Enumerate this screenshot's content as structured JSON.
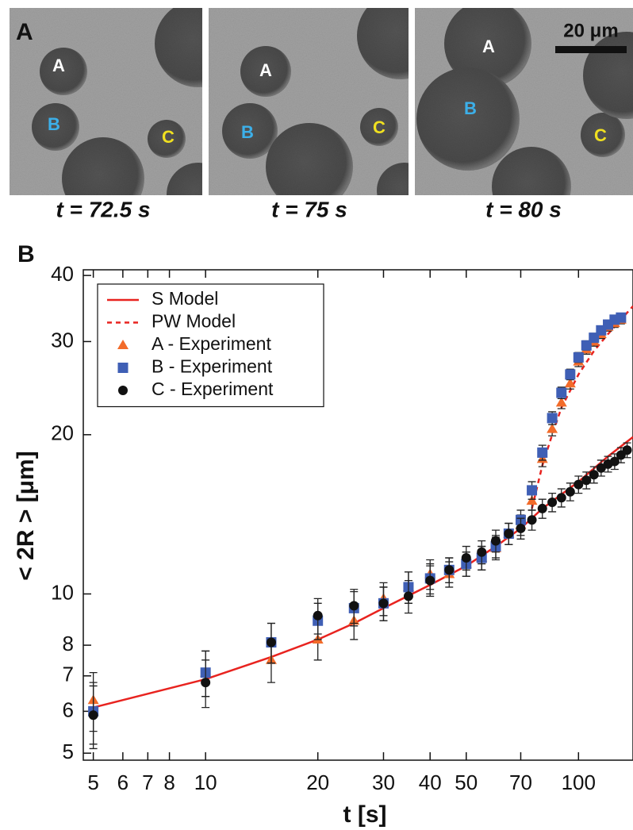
{
  "panel_a": {
    "label": "A",
    "scale_bar": "20 μm",
    "frames": [
      {
        "caption": "t = 72.5 s",
        "markers": [
          "A",
          "B",
          "C"
        ]
      },
      {
        "caption": "t = 75 s",
        "markers": [
          "A",
          "B",
          "C"
        ]
      },
      {
        "caption": "t = 80 s",
        "markers": [
          "A",
          "B",
          "C"
        ]
      }
    ]
  },
  "chart_data": {
    "type": "scatter",
    "panel_label": "B",
    "xlabel": "t [s]",
    "ylabel": "< 2R > [μm]",
    "log_x": true,
    "log_y": true,
    "xlim": [
      4.7,
      140
    ],
    "ylim": [
      4.85,
      41
    ],
    "xticks": [
      5,
      6,
      7,
      8,
      10,
      20,
      30,
      40,
      50,
      70,
      100
    ],
    "yticks": [
      5,
      6,
      7,
      8,
      10,
      20,
      30,
      40
    ],
    "legend": "upper left",
    "series": [
      {
        "name": "S Model",
        "color": "#e8231f",
        "style": "solid",
        "x": [
          5,
          10,
          15,
          20,
          25,
          30,
          40,
          50,
          60,
          70,
          80,
          100,
          120,
          140
        ],
        "values": [
          6.1,
          6.9,
          7.6,
          8.2,
          8.8,
          9.4,
          10.4,
          11.3,
          12.3,
          13.3,
          14.5,
          16.3,
          18.2,
          19.8
        ]
      },
      {
        "name": "PW Model",
        "color": "#e8231f",
        "style": "dashed",
        "x": [
          75,
          80,
          85,
          90,
          100,
          110,
          120,
          130,
          140
        ],
        "values": [
          14.5,
          17.5,
          20,
          22.5,
          26,
          28.8,
          31,
          33,
          35
        ]
      },
      {
        "name": "A - Experiment",
        "color": "#f26b2a",
        "marker": "triangle",
        "x": [
          5,
          10,
          15,
          20,
          25,
          30,
          35,
          40,
          45,
          50,
          55,
          60,
          65,
          70,
          75,
          80,
          85,
          90,
          95,
          100,
          105,
          110,
          115,
          120,
          125,
          130
        ],
        "values": [
          6.3,
          7.1,
          7.5,
          8.2,
          8.9,
          9.8,
          10.3,
          10.9,
          10.9,
          11.4,
          11.7,
          12.2,
          13,
          13.5,
          15,
          18,
          20.5,
          23,
          25,
          27.5,
          29,
          30,
          31,
          32,
          32.5,
          33
        ],
        "errors": [
          0.8,
          0.7,
          0.7,
          0.7,
          0.7,
          0.7,
          0.7,
          0.7,
          0.6,
          0.6,
          0.6,
          0.6,
          0.6,
          0.6,
          0.6,
          0.6,
          0.6,
          0.6,
          0.6,
          0.6,
          0.6,
          0.6,
          0.6,
          0.6,
          0.6,
          0.6
        ]
      },
      {
        "name": "B - Experiment",
        "color": "#3f5fb5",
        "marker": "square",
        "x": [
          5,
          10,
          15,
          20,
          25,
          30,
          35,
          40,
          45,
          50,
          55,
          60,
          65,
          70,
          75,
          80,
          85,
          90,
          95,
          100,
          105,
          110,
          115,
          120,
          125,
          130
        ],
        "values": [
          6.0,
          7.1,
          8.1,
          8.9,
          9.4,
          9.6,
          10.3,
          10.7,
          11.1,
          11.4,
          11.7,
          12.3,
          13,
          13.8,
          15.7,
          18.5,
          21.5,
          24,
          26,
          28,
          29.5,
          30.5,
          31.5,
          32.3,
          33,
          33.3
        ],
        "errors": [
          0.8,
          0.7,
          0.7,
          0.7,
          0.7,
          0.7,
          0.7,
          0.7,
          0.6,
          0.6,
          0.6,
          0.6,
          0.6,
          0.6,
          0.6,
          0.6,
          0.6,
          0.6,
          0.6,
          0.6,
          0.6,
          0.6,
          0.6,
          0.6,
          0.6,
          0.6
        ]
      },
      {
        "name": "C - Experiment",
        "color": "#111111",
        "marker": "circle",
        "x": [
          5,
          10,
          15,
          20,
          25,
          30,
          35,
          40,
          45,
          50,
          55,
          60,
          65,
          70,
          75,
          80,
          85,
          90,
          95,
          100,
          105,
          110,
          115,
          120,
          125,
          130,
          135
        ],
        "values": [
          5.9,
          6.8,
          8.1,
          9.1,
          9.5,
          9.6,
          9.9,
          10.6,
          11.1,
          11.7,
          12.0,
          12.6,
          13.0,
          13.3,
          13.8,
          14.5,
          14.9,
          15.2,
          15.6,
          16.1,
          16.4,
          16.8,
          17.3,
          17.6,
          17.8,
          18.3,
          18.7
        ],
        "errors": [
          0.8,
          0.7,
          0.7,
          0.7,
          0.7,
          0.7,
          0.7,
          0.7,
          0.6,
          0.6,
          0.6,
          0.6,
          0.6,
          0.6,
          0.6,
          0.6,
          0.6,
          0.6,
          0.6,
          0.6,
          0.6,
          0.6,
          0.6,
          0.6,
          0.6,
          0.6,
          0.6
        ]
      }
    ]
  }
}
